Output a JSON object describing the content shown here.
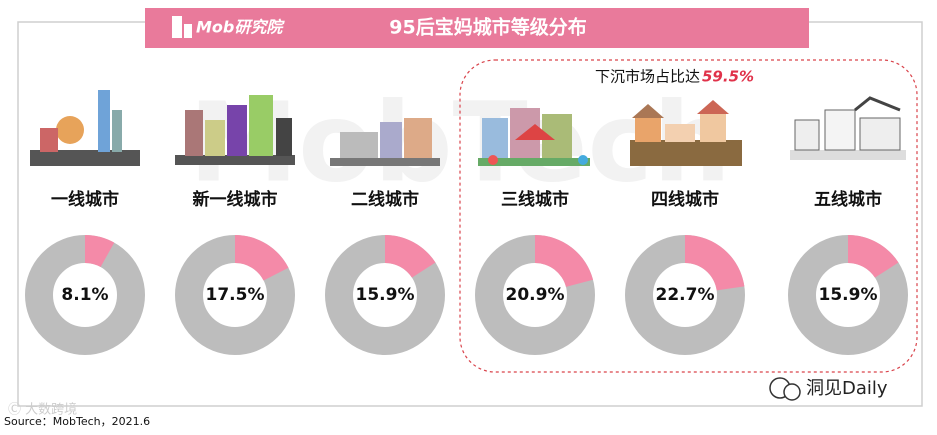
{
  "header": {
    "brand": "Mob研究院",
    "title": "95后宝妈城市等级分布"
  },
  "annotation": {
    "text": "下沉市场占比达",
    "value": "59.5%"
  },
  "chart_data": [
    {
      "type": "donut",
      "title": "一线城市",
      "values": [
        8.1
      ],
      "value_labels": [
        "8.1%"
      ],
      "color": "#f48aa8",
      "track_color": "#bdbdbd"
    },
    {
      "type": "donut",
      "title": "新一线城市",
      "values": [
        17.5
      ],
      "value_labels": [
        "17.5%"
      ],
      "color": "#f48aa8",
      "track_color": "#bdbdbd"
    },
    {
      "type": "donut",
      "title": "二线城市",
      "values": [
        15.9
      ],
      "value_labels": [
        "15.9%"
      ],
      "color": "#f48aa8",
      "track_color": "#bdbdbd"
    },
    {
      "type": "donut",
      "title": "三线城市",
      "values": [
        20.9
      ],
      "value_labels": [
        "20.9%"
      ],
      "color": "#f48aa8",
      "track_color": "#bdbdbd"
    },
    {
      "type": "donut",
      "title": "四线城市",
      "values": [
        22.7
      ],
      "value_labels": [
        "22.7%"
      ],
      "color": "#f48aa8",
      "track_color": "#bdbdbd"
    },
    {
      "type": "donut",
      "title": "五线城市",
      "values": [
        15.9
      ],
      "value_labels": [
        "15.9%"
      ],
      "color": "#f48aa8",
      "track_color": "#bdbdbd"
    }
  ],
  "source": "Source：MobTech，2021.6",
  "watermark": "洞见Daily"
}
